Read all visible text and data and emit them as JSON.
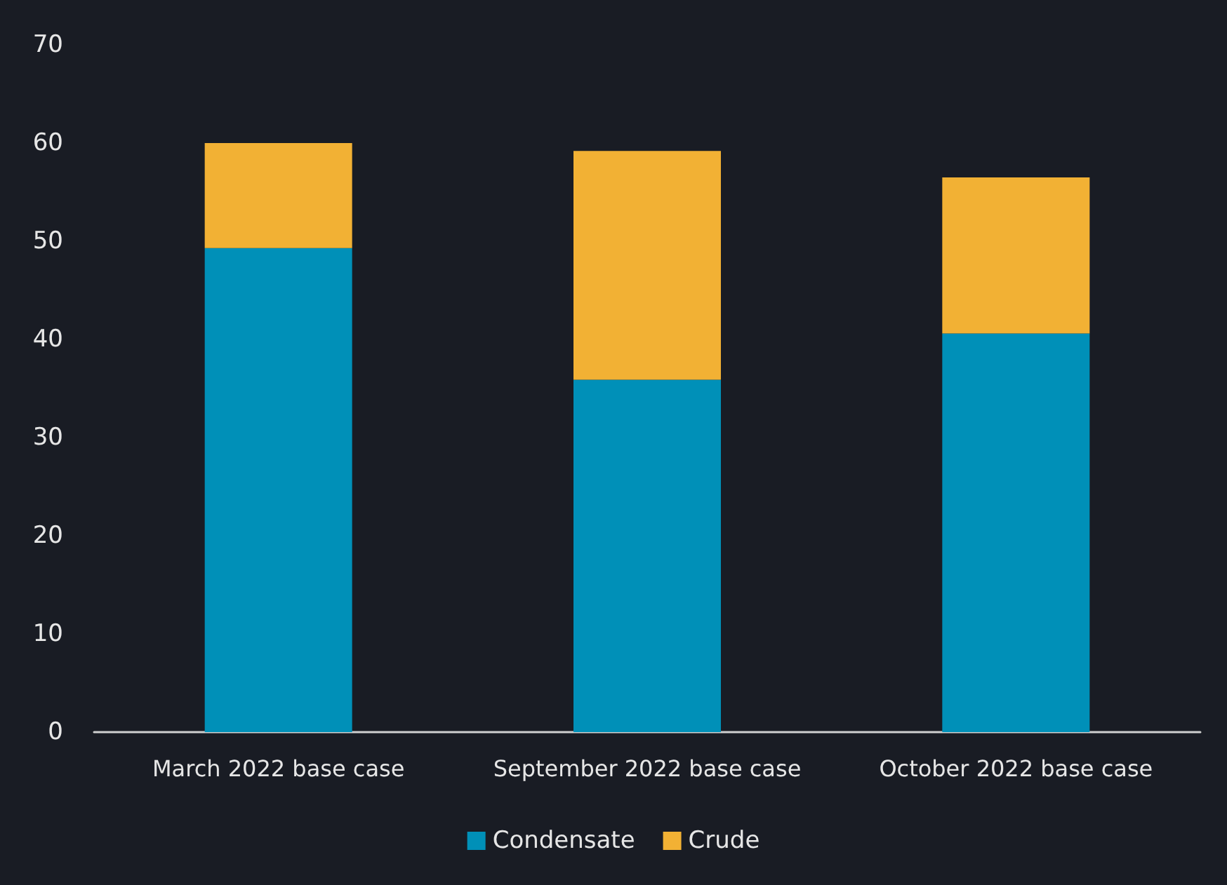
{
  "chart_data": {
    "type": "bar",
    "stacked": true,
    "categories": [
      "March 2022 base case",
      "September 2022 base case",
      "October 2022 base case"
    ],
    "series": [
      {
        "name": "Condensate",
        "color": "#0090b8",
        "values": [
          49.3,
          35.9,
          40.6
        ]
      },
      {
        "name": "Crude",
        "color": "#f2b134",
        "values": [
          10.7,
          23.3,
          15.9
        ]
      }
    ],
    "ylim": [
      0,
      70
    ],
    "yticks": [
      0,
      10,
      20,
      30,
      40,
      50,
      60,
      70
    ],
    "grid": false,
    "legend": "bottom"
  }
}
